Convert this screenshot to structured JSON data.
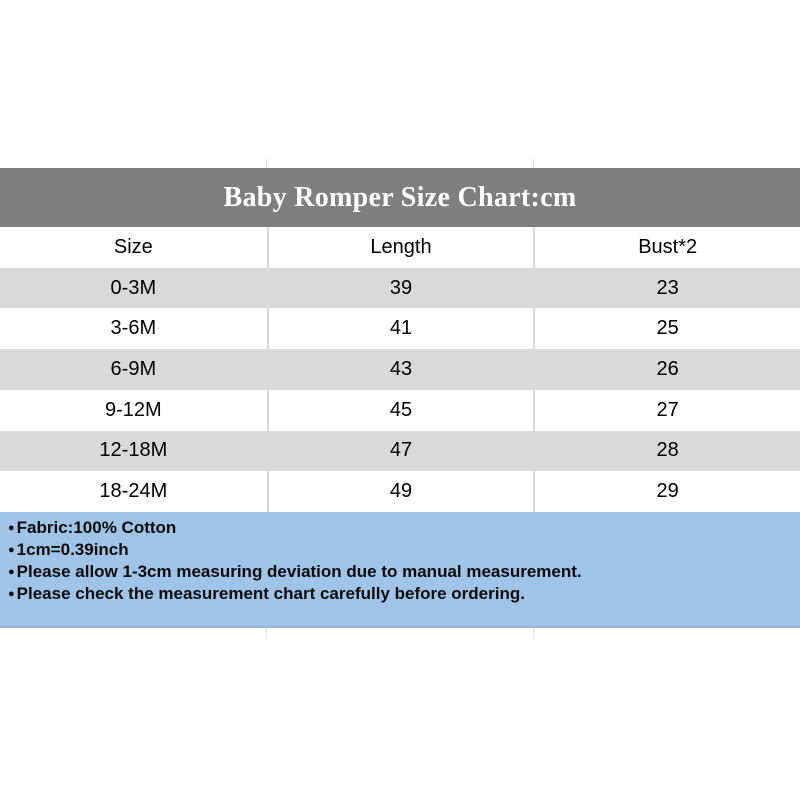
{
  "banner": {
    "title": "Baby Romper Size Chart:cm",
    "bg_color": "#7f7f7f",
    "text_color": "#ffffff"
  },
  "chart_data": {
    "type": "table",
    "title": "Baby Romper Size Chart:cm",
    "unit": "cm",
    "columns": [
      "Size",
      "Length",
      "Bust*2"
    ],
    "rows": [
      [
        "0-3M",
        "39",
        "23"
      ],
      [
        "3-6M",
        "41",
        "25"
      ],
      [
        "6-9M",
        "43",
        "26"
      ],
      [
        "9-12M",
        "45",
        "27"
      ],
      [
        "12-18M",
        "47",
        "28"
      ],
      [
        "18-24M",
        "49",
        "29"
      ]
    ],
    "alt_row_color": "#d9d9d9",
    "grid_line_color": "#d9d9d9"
  },
  "notes": {
    "bullet": "●",
    "bg_color": "#a0c4e8",
    "items": [
      "Fabric:100% Cotton",
      "1cm=0.39inch",
      "Please allow 1-3cm measuring deviation due to manual measurement.",
      "Please check the measurement chart carefully before ordering."
    ]
  }
}
